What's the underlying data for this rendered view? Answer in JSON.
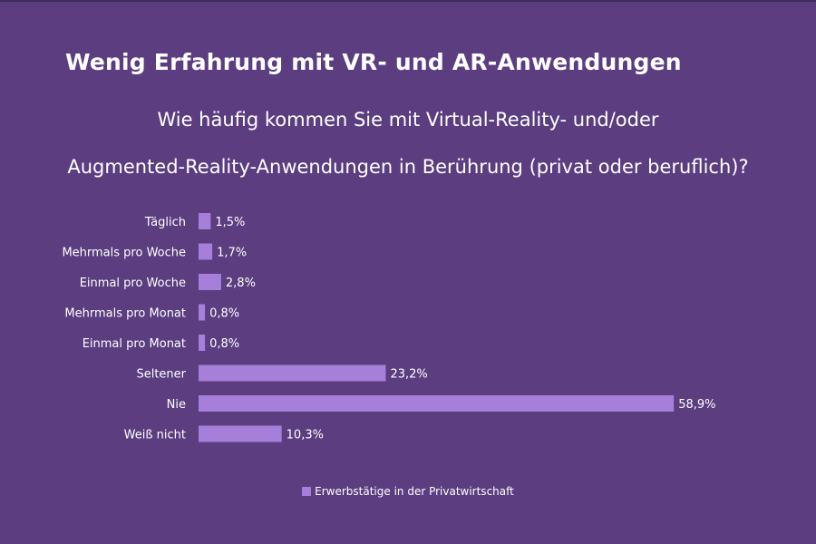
{
  "header": {
    "title": "Wenig Erfahrung mit VR- und AR-Anwendungen",
    "subtitle_line1": "Wie häufig kommen Sie mit Virtual-Reality- und/oder",
    "subtitle_line2": "Augmented-Reality-Anwendungen in Berührung (privat oder beruflich)?"
  },
  "colors": {
    "background": "#5b3d80",
    "bar": "#a57fd9",
    "text": "#ffffff"
  },
  "chart_data": {
    "type": "bar",
    "orientation": "horizontal",
    "categories": [
      "Täglich",
      "Mehrmals pro Woche",
      "Einmal pro Woche",
      "Mehrmals pro Monat",
      "Einmal pro Monat",
      "Seltener",
      "Nie",
      "Weiß nicht"
    ],
    "series": [
      {
        "name": "Erwerbstätige in der Privatwirtschaft",
        "values": [
          1.5,
          1.7,
          2.8,
          0.8,
          0.8,
          23.2,
          58.9,
          10.3
        ],
        "labels": [
          "1,5%",
          "1,7%",
          "2,8%",
          "0,8%",
          "0,8%",
          "23,2%",
          "58,9%",
          "10,3%"
        ]
      }
    ],
    "xlim": [
      0,
      60
    ],
    "grid": false,
    "legend_position": "bottom"
  }
}
